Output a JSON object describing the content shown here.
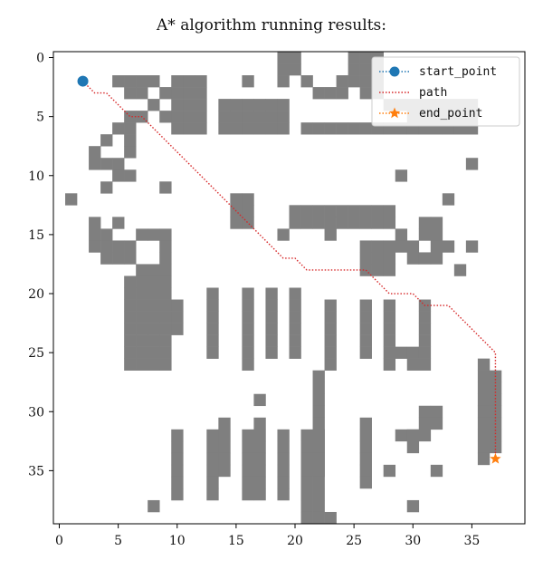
{
  "title": "A* algorithm running results:",
  "chart_data": {
    "type": "scatter",
    "title": "A* algorithm running results:",
    "xlabel": "",
    "ylabel": "",
    "xlim": [
      -0.5,
      39.5
    ],
    "ylim": [
      39.5,
      -0.5
    ],
    "y_axis_inverted": true,
    "x_ticks": [
      0,
      5,
      10,
      15,
      20,
      25,
      30,
      35
    ],
    "y_ticks": [
      0,
      5,
      10,
      15,
      20,
      25,
      30,
      35
    ],
    "grid": false,
    "legend_position": "top-right",
    "obstacle_color": "#7f7f7f",
    "obstacles": [
      [
        19,
        0
      ],
      [
        20,
        0
      ],
      [
        19,
        1
      ],
      [
        20,
        1
      ],
      [
        19,
        2
      ],
      [
        25,
        0
      ],
      [
        26,
        0
      ],
      [
        27,
        0
      ],
      [
        25,
        1
      ],
      [
        26,
        1
      ],
      [
        27,
        1
      ],
      [
        24,
        2
      ],
      [
        25,
        2
      ],
      [
        26,
        2
      ],
      [
        27,
        2
      ],
      [
        23,
        3
      ],
      [
        24,
        3
      ],
      [
        26,
        3
      ],
      [
        27,
        3
      ],
      [
        5,
        2
      ],
      [
        6,
        2
      ],
      [
        7,
        2
      ],
      [
        8,
        2
      ],
      [
        6,
        3
      ],
      [
        7,
        3
      ],
      [
        9,
        3
      ],
      [
        8,
        4
      ],
      [
        6,
        5
      ],
      [
        7,
        5
      ],
      [
        9,
        5
      ],
      [
        10,
        2
      ],
      [
        11,
        2
      ],
      [
        12,
        2
      ],
      [
        10,
        3
      ],
      [
        11,
        3
      ],
      [
        12,
        3
      ],
      [
        10,
        4
      ],
      [
        11,
        4
      ],
      [
        12,
        4
      ],
      [
        10,
        5
      ],
      [
        11,
        5
      ],
      [
        12,
        5
      ],
      [
        10,
        6
      ],
      [
        11,
        6
      ],
      [
        12,
        6
      ],
      [
        16,
        2
      ],
      [
        14,
        4
      ],
      [
        15,
        4
      ],
      [
        16,
        4
      ],
      [
        17,
        4
      ],
      [
        18,
        4
      ],
      [
        19,
        4
      ],
      [
        14,
        5
      ],
      [
        15,
        5
      ],
      [
        16,
        5
      ],
      [
        17,
        5
      ],
      [
        18,
        5
      ],
      [
        19,
        5
      ],
      [
        14,
        6
      ],
      [
        15,
        6
      ],
      [
        16,
        6
      ],
      [
        17,
        6
      ],
      [
        18,
        6
      ],
      [
        19,
        6
      ],
      [
        21,
        2
      ],
      [
        22,
        3
      ],
      [
        28,
        4
      ],
      [
        29,
        4
      ],
      [
        30,
        4
      ],
      [
        31,
        4
      ],
      [
        32,
        4
      ],
      [
        33,
        4
      ],
      [
        34,
        4
      ],
      [
        35,
        4
      ],
      [
        30,
        5
      ],
      [
        31,
        5
      ],
      [
        32,
        5
      ],
      [
        33,
        5
      ],
      [
        34,
        5
      ],
      [
        35,
        5
      ],
      [
        21,
        6
      ],
      [
        22,
        6
      ],
      [
        23,
        6
      ],
      [
        24,
        6
      ],
      [
        25,
        6
      ],
      [
        26,
        6
      ],
      [
        27,
        6
      ],
      [
        28,
        6
      ],
      [
        29,
        6
      ],
      [
        30,
        6
      ],
      [
        31,
        6
      ],
      [
        32,
        6
      ],
      [
        33,
        6
      ],
      [
        34,
        6
      ],
      [
        35,
        6
      ],
      [
        5,
        6
      ],
      [
        6,
        6
      ],
      [
        4,
        7
      ],
      [
        6,
        7
      ],
      [
        3,
        8
      ],
      [
        6,
        8
      ],
      [
        3,
        9
      ],
      [
        4,
        9
      ],
      [
        5,
        9
      ],
      [
        35,
        9
      ],
      [
        5,
        10
      ],
      [
        6,
        10
      ],
      [
        29,
        10
      ],
      [
        4,
        11
      ],
      [
        9,
        11
      ],
      [
        33,
        12
      ],
      [
        1,
        12
      ],
      [
        15,
        12
      ],
      [
        16,
        12
      ],
      [
        15,
        13
      ],
      [
        16,
        13
      ],
      [
        15,
        14
      ],
      [
        16,
        14
      ],
      [
        20,
        13
      ],
      [
        21,
        13
      ],
      [
        22,
        13
      ],
      [
        23,
        13
      ],
      [
        24,
        13
      ],
      [
        25,
        13
      ],
      [
        26,
        13
      ],
      [
        27,
        13
      ],
      [
        28,
        13
      ],
      [
        20,
        14
      ],
      [
        21,
        14
      ],
      [
        22,
        14
      ],
      [
        23,
        14
      ],
      [
        24,
        14
      ],
      [
        25,
        14
      ],
      [
        26,
        14
      ],
      [
        27,
        14
      ],
      [
        28,
        14
      ],
      [
        31,
        14
      ],
      [
        32,
        14
      ],
      [
        3,
        14
      ],
      [
        5,
        14
      ],
      [
        3,
        15
      ],
      [
        4,
        15
      ],
      [
        7,
        15
      ],
      [
        8,
        15
      ],
      [
        9,
        15
      ],
      [
        19,
        15
      ],
      [
        23,
        15
      ],
      [
        31,
        15
      ],
      [
        32,
        15
      ],
      [
        3,
        16
      ],
      [
        4,
        16
      ],
      [
        5,
        16
      ],
      [
        6,
        16
      ],
      [
        4,
        17
      ],
      [
        5,
        17
      ],
      [
        6,
        17
      ],
      [
        9,
        16
      ],
      [
        9,
        17
      ],
      [
        26,
        16
      ],
      [
        27,
        16
      ],
      [
        28,
        16
      ],
      [
        26,
        17
      ],
      [
        27,
        17
      ],
      [
        28,
        17
      ],
      [
        30,
        16
      ],
      [
        32,
        16
      ],
      [
        33,
        16
      ],
      [
        35,
        16
      ],
      [
        26,
        18
      ],
      [
        27,
        18
      ],
      [
        28,
        18
      ],
      [
        34,
        18
      ],
      [
        29,
        15
      ],
      [
        29,
        16
      ],
      [
        30,
        17
      ],
      [
        31,
        17
      ],
      [
        32,
        17
      ],
      [
        7,
        18
      ],
      [
        8,
        18
      ],
      [
        9,
        18
      ],
      [
        6,
        19
      ],
      [
        7,
        19
      ],
      [
        8,
        19
      ],
      [
        9,
        19
      ],
      [
        6,
        20
      ],
      [
        7,
        20
      ],
      [
        8,
        20
      ],
      [
        9,
        20
      ],
      [
        6,
        21
      ],
      [
        7,
        21
      ],
      [
        8,
        21
      ],
      [
        9,
        21
      ],
      [
        6,
        22
      ],
      [
        7,
        22
      ],
      [
        8,
        22
      ],
      [
        9,
        22
      ],
      [
        6,
        23
      ],
      [
        7,
        23
      ],
      [
        8,
        23
      ],
      [
        9,
        23
      ],
      [
        6,
        24
      ],
      [
        7,
        24
      ],
      [
        8,
        24
      ],
      [
        9,
        24
      ],
      [
        6,
        25
      ],
      [
        7,
        25
      ],
      [
        8,
        25
      ],
      [
        9,
        25
      ],
      [
        6,
        26
      ],
      [
        7,
        26
      ],
      [
        8,
        26
      ],
      [
        9,
        26
      ],
      [
        10,
        21
      ],
      [
        10,
        22
      ],
      [
        10,
        23
      ],
      [
        13,
        20
      ],
      [
        13,
        21
      ],
      [
        13,
        22
      ],
      [
        13,
        23
      ],
      [
        13,
        24
      ],
      [
        13,
        25
      ],
      [
        16,
        20
      ],
      [
        16,
        21
      ],
      [
        16,
        22
      ],
      [
        16,
        23
      ],
      [
        16,
        24
      ],
      [
        16,
        25
      ],
      [
        16,
        26
      ],
      [
        18,
        20
      ],
      [
        18,
        21
      ],
      [
        18,
        22
      ],
      [
        18,
        23
      ],
      [
        18,
        24
      ],
      [
        18,
        25
      ],
      [
        20,
        20
      ],
      [
        20,
        21
      ],
      [
        20,
        22
      ],
      [
        20,
        23
      ],
      [
        20,
        24
      ],
      [
        20,
        25
      ],
      [
        23,
        21
      ],
      [
        23,
        22
      ],
      [
        23,
        23
      ],
      [
        23,
        24
      ],
      [
        23,
        25
      ],
      [
        23,
        26
      ],
      [
        26,
        21
      ],
      [
        26,
        22
      ],
      [
        26,
        23
      ],
      [
        26,
        24
      ],
      [
        26,
        25
      ],
      [
        28,
        21
      ],
      [
        28,
        22
      ],
      [
        28,
        23
      ],
      [
        28,
        24
      ],
      [
        28,
        25
      ],
      [
        28,
        26
      ],
      [
        29,
        25
      ],
      [
        30,
        25
      ],
      [
        31,
        21
      ],
      [
        31,
        22
      ],
      [
        31,
        23
      ],
      [
        31,
        24
      ],
      [
        31,
        25
      ],
      [
        31,
        26
      ],
      [
        30,
        26
      ],
      [
        36,
        26
      ],
      [
        36,
        27
      ],
      [
        36,
        28
      ],
      [
        36,
        29
      ],
      [
        36,
        30
      ],
      [
        36,
        31
      ],
      [
        36,
        32
      ],
      [
        36,
        33
      ],
      [
        36,
        34
      ],
      [
        37,
        27
      ],
      [
        37,
        28
      ],
      [
        37,
        29
      ],
      [
        37,
        30
      ],
      [
        37,
        31
      ],
      [
        37,
        32
      ],
      [
        37,
        33
      ],
      [
        22,
        27
      ],
      [
        22,
        28
      ],
      [
        22,
        29
      ],
      [
        22,
        30
      ],
      [
        22,
        31
      ],
      [
        22,
        32
      ],
      [
        22,
        33
      ],
      [
        22,
        34
      ],
      [
        22,
        35
      ],
      [
        26,
        31
      ],
      [
        26,
        32
      ],
      [
        26,
        33
      ],
      [
        26,
        34
      ],
      [
        26,
        35
      ],
      [
        26,
        36
      ],
      [
        31,
        30
      ],
      [
        32,
        30
      ],
      [
        31,
        31
      ],
      [
        32,
        31
      ],
      [
        30,
        32
      ],
      [
        31,
        32
      ],
      [
        29,
        32
      ],
      [
        30,
        32
      ],
      [
        30,
        33
      ],
      [
        17,
        29
      ],
      [
        28,
        35
      ],
      [
        32,
        35
      ],
      [
        10,
        32
      ],
      [
        10,
        33
      ],
      [
        10,
        34
      ],
      [
        10,
        35
      ],
      [
        10,
        36
      ],
      [
        10,
        37
      ],
      [
        13,
        32
      ],
      [
        13,
        33
      ],
      [
        13,
        34
      ],
      [
        13,
        35
      ],
      [
        13,
        36
      ],
      [
        13,
        37
      ],
      [
        14,
        31
      ],
      [
        14,
        32
      ],
      [
        14,
        33
      ],
      [
        14,
        34
      ],
      [
        14,
        35
      ],
      [
        16,
        32
      ],
      [
        16,
        33
      ],
      [
        16,
        34
      ],
      [
        16,
        35
      ],
      [
        16,
        36
      ],
      [
        16,
        37
      ],
      [
        17,
        31
      ],
      [
        17,
        32
      ],
      [
        17,
        33
      ],
      [
        17,
        34
      ],
      [
        17,
        35
      ],
      [
        17,
        36
      ],
      [
        17,
        37
      ],
      [
        19,
        32
      ],
      [
        19,
        33
      ],
      [
        19,
        34
      ],
      [
        19,
        35
      ],
      [
        19,
        36
      ],
      [
        19,
        37
      ],
      [
        21,
        32
      ],
      [
        22,
        32
      ],
      [
        21,
        33
      ],
      [
        22,
        33
      ],
      [
        21,
        34
      ],
      [
        22,
        34
      ],
      [
        21,
        35
      ],
      [
        22,
        35
      ],
      [
        21,
        36
      ],
      [
        22,
        36
      ],
      [
        21,
        37
      ],
      [
        22,
        37
      ],
      [
        21,
        38
      ],
      [
        22,
        38
      ],
      [
        21,
        39
      ],
      [
        22,
        39
      ],
      [
        23,
        39
      ],
      [
        8,
        38
      ],
      [
        30,
        38
      ]
    ],
    "series": [
      {
        "name": "start_point",
        "marker": "circle",
        "color": "#1f77b4",
        "points": [
          [
            2,
            2
          ]
        ]
      },
      {
        "name": "path",
        "marker": "none",
        "line": "dotted",
        "color": "#d62728",
        "points": [
          [
            2,
            2
          ],
          [
            3,
            3
          ],
          [
            4,
            3
          ],
          [
            5,
            4
          ],
          [
            6,
            5
          ],
          [
            7,
            5
          ],
          [
            8,
            6
          ],
          [
            9,
            7
          ],
          [
            10,
            8
          ],
          [
            11,
            9
          ],
          [
            12,
            10
          ],
          [
            13,
            11
          ],
          [
            14,
            12
          ],
          [
            15,
            13
          ],
          [
            16,
            14
          ],
          [
            17,
            15
          ],
          [
            18,
            16
          ],
          [
            19,
            17
          ],
          [
            20,
            17
          ],
          [
            21,
            18
          ],
          [
            22,
            18
          ],
          [
            23,
            18
          ],
          [
            24,
            18
          ],
          [
            25,
            18
          ],
          [
            26,
            18
          ],
          [
            27,
            19
          ],
          [
            28,
            20
          ],
          [
            29,
            20
          ],
          [
            30,
            20
          ],
          [
            31,
            21
          ],
          [
            32,
            21
          ],
          [
            33,
            21
          ],
          [
            34,
            22
          ],
          [
            35,
            23
          ],
          [
            36,
            24
          ],
          [
            37,
            25
          ],
          [
            37,
            26
          ],
          [
            37,
            27
          ],
          [
            37,
            28
          ],
          [
            37,
            29
          ],
          [
            37,
            30
          ],
          [
            37,
            31
          ],
          [
            37,
            32
          ],
          [
            37,
            33
          ],
          [
            37,
            34
          ]
        ]
      },
      {
        "name": "end_point",
        "marker": "star",
        "color": "#ff7f0e",
        "points": [
          [
            37,
            34
          ]
        ]
      }
    ]
  },
  "colors": {
    "obstacle": "#7f7f7f",
    "start": "#1f77b4",
    "path": "#d62728",
    "end": "#ff7f0e"
  }
}
